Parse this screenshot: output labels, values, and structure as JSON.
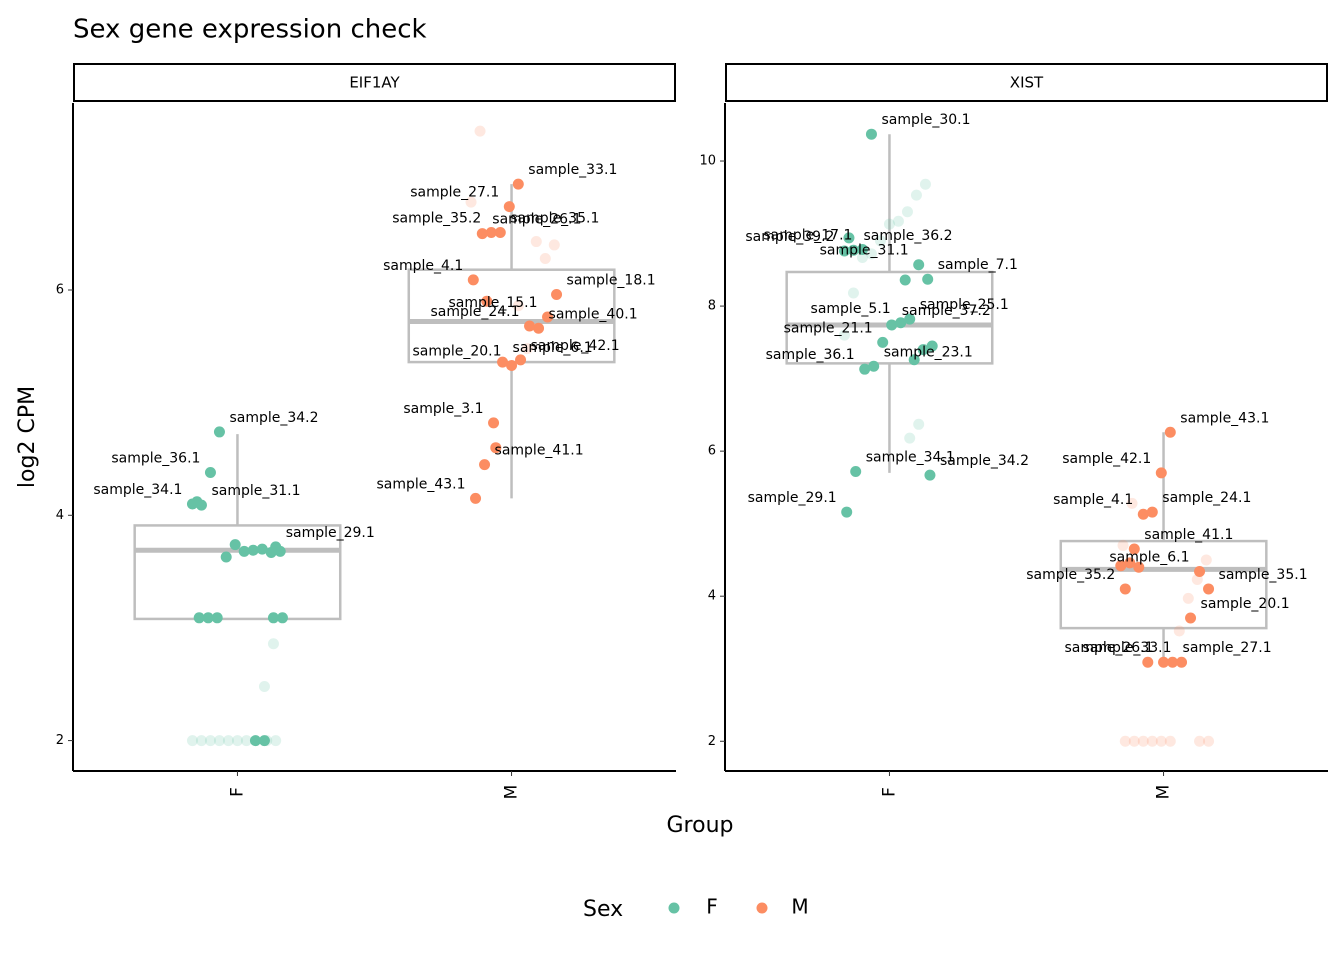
{
  "chart_data": {
    "type": "box",
    "title": "Sex gene expression check",
    "x_label": "Group",
    "y_label": "log2 CPM",
    "legend_title": "Sex",
    "series": [
      {
        "name": "F",
        "color": "#66c2a5"
      },
      {
        "name": "M",
        "color": "#fc8d62"
      }
    ],
    "facets": [
      {
        "strip": "EIF1AY",
        "categories": [
          "F",
          "M"
        ],
        "ylim": [
          1.73,
          7.66
        ],
        "yticks": [
          2,
          4,
          6
        ],
        "groups": [
          {
            "whisker_low": 3.08,
            "q1": 3.08,
            "median": 3.69,
            "q3": 3.91,
            "whisker_high": 4.72,
            "labeled_points": [
              {
                "label": "sample_34.2",
                "value": 4.74
              },
              {
                "label": "sample_36.1",
                "value": 4.38
              },
              {
                "label": "sample_31.1",
                "value": 4.09
              },
              {
                "label": "sample_34.1",
                "value": 4.1
              },
              {
                "label": "sample_29.1",
                "value": 3.72
              }
            ],
            "points": [
              4.12,
              3.68,
              3.67,
              3.7,
              3.69,
              3.68,
              3.74,
              3.63,
              3.09,
              3.09,
              3.09,
              3.09,
              3.09,
              2.0,
              2.0
            ],
            "faded_points": [
              2.86,
              2.48,
              2.0,
              2.0,
              2.0,
              2.0,
              2.0,
              2.0,
              2.0,
              2.0,
              2.0,
              2.0
            ]
          },
          {
            "whisker_low": 4.15,
            "q1": 5.36,
            "median": 5.72,
            "q3": 6.18,
            "whisker_high": 6.94,
            "labeled_points": [
              {
                "label": "sample_33.1",
                "value": 6.94
              },
              {
                "label": "sample_27.1",
                "value": 6.74
              },
              {
                "label": "sample_35.1",
                "value": 6.51
              },
              {
                "label": "sample_35.2",
                "value": 6.51
              },
              {
                "label": "sample_26.1",
                "value": 6.5
              },
              {
                "label": "sample_4.1",
                "value": 6.09
              },
              {
                "label": "sample_18.1",
                "value": 5.96
              },
              {
                "label": "sample_15.1",
                "value": 5.76
              },
              {
                "label": "sample_40.1",
                "value": 5.66
              },
              {
                "label": "sample_24.1",
                "value": 5.68
              },
              {
                "label": "sample_42.1",
                "value": 5.38
              },
              {
                "label": "sample_20.1",
                "value": 5.33
              },
              {
                "label": "sample_6.1",
                "value": 5.36
              },
              {
                "label": "sample_3.1",
                "value": 4.82
              },
              {
                "label": "sample_41.1",
                "value": 4.45
              },
              {
                "label": "sample_43.1",
                "value": 4.15
              }
            ],
            "points": [
              4.6,
              5.9
            ],
            "faded_points": [
              7.41,
              6.78,
              6.4,
              6.28,
              6.43,
              5.48,
              5.86
            ]
          }
        ]
      },
      {
        "strip": "XIST",
        "categories": [
          "F",
          "M"
        ],
        "ylim": [
          1.59,
          10.8
        ],
        "yticks": [
          2,
          4,
          6,
          8,
          10
        ],
        "groups": [
          {
            "whisker_low": 5.7,
            "q1": 7.21,
            "median": 7.74,
            "q3": 8.47,
            "whisker_high": 10.37,
            "labeled_points": [
              {
                "label": "sample_30.1",
                "value": 10.37
              },
              {
                "label": "sample_17.1",
                "value": 8.78
              },
              {
                "label": "sample_36.2",
                "value": 8.77
              },
              {
                "label": "sample_39.2",
                "value": 8.76
              },
              {
                "label": "sample_7.1",
                "value": 8.37
              },
              {
                "label": "sample_31.1",
                "value": 8.57
              },
              {
                "label": "sample_25.1",
                "value": 7.82
              },
              {
                "label": "sample_5.1",
                "value": 7.77
              },
              {
                "label": "sample_37.2",
                "value": 7.74
              },
              {
                "label": "sample_21.1",
                "value": 7.5
              },
              {
                "label": "sample_23.1",
                "value": 7.17
              },
              {
                "label": "sample_36.1",
                "value": 7.13
              },
              {
                "label": "sample_34.1",
                "value": 5.72
              },
              {
                "label": "sample_29.1",
                "value": 5.16
              },
              {
                "label": "sample_34.2",
                "value": 5.67
              }
            ],
            "points": [
              8.94,
              7.45,
              7.4,
              7.26,
              8.36
            ],
            "faded_points": [
              9.68,
              9.53,
              9.3,
              9.17,
              9.13,
              8.9,
              8.72,
              8.67,
              8.18,
              7.6,
              7.41,
              6.37,
              6.18
            ]
          },
          {
            "whisker_low": 3.08,
            "q1": 3.56,
            "median": 4.37,
            "q3": 4.76,
            "whisker_high": 6.26,
            "labeled_points": [
              {
                "label": "sample_43.1",
                "value": 6.26
              },
              {
                "label": "sample_42.1",
                "value": 5.7
              },
              {
                "label": "sample_24.1",
                "value": 5.16
              },
              {
                "label": "sample_4.1",
                "value": 5.13
              },
              {
                "label": "sample_41.1",
                "value": 4.65
              },
              {
                "label": "sample_35.2",
                "value": 4.1
              },
              {
                "label": "sample_35.1",
                "value": 4.1
              },
              {
                "label": "sample_6.1",
                "value": 4.34
              },
              {
                "label": "sample_20.1",
                "value": 3.7
              },
              {
                "label": "sample_33.1",
                "value": 3.09
              },
              {
                "label": "sample_27.1",
                "value": 3.09
              },
              {
                "label": "sample_26.1",
                "value": 3.09
              }
            ],
            "points": [
              3.09,
              4.4,
              4.46,
              4.42
            ],
            "faded_points": [
              5.28,
              4.7,
              4.5,
              4.23,
              3.97,
              3.52,
              2.0,
              2.0,
              2.0,
              2.0,
              2.0,
              2.0,
              2.0,
              2.0
            ]
          }
        ]
      }
    ]
  }
}
